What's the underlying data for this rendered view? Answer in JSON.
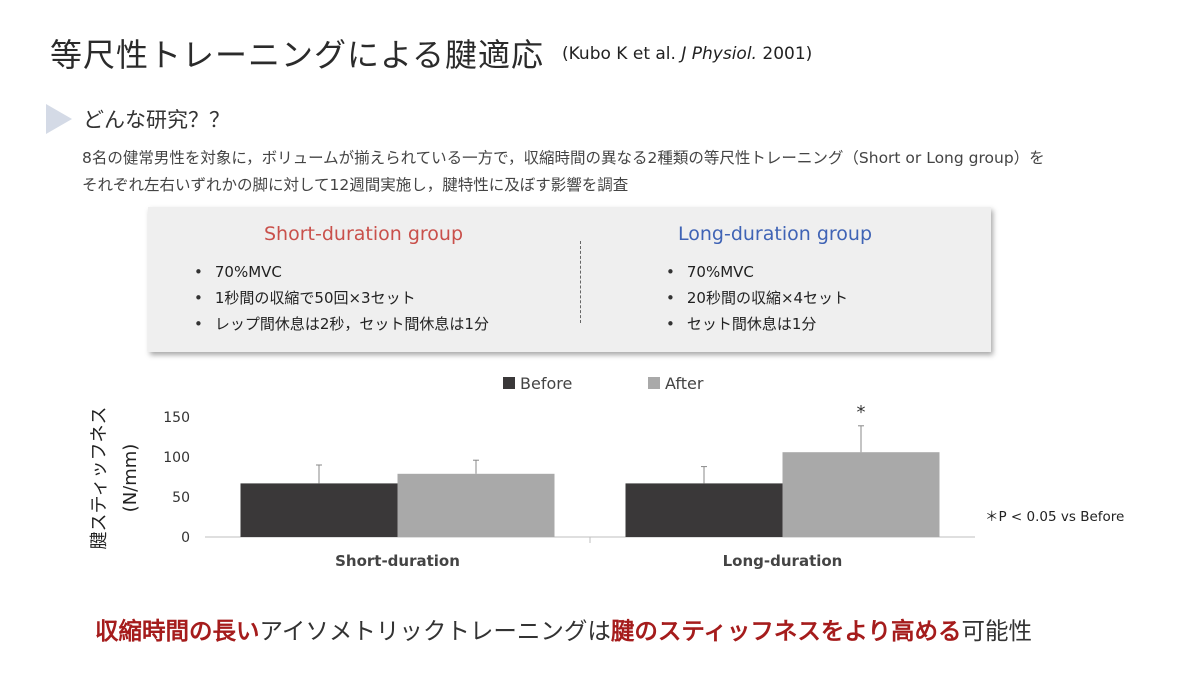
{
  "header": {
    "title": "等尺性トレーニングによる腱適応",
    "citation_prefix": "(Kubo K et al. ",
    "citation_journal": "J Physiol.",
    "citation_suffix": " 2001)"
  },
  "section": {
    "heading": "どんな研究？？",
    "desc_line1": "8名の健常男性を対象に，ボリュームが揃えられている一方で，収縮時間の異なる2種類の等尺性トレーニング（Short or Long group）を",
    "desc_line2": "それぞれ左右いずれかの脚に対して12週間実施し，腱特性に及ぼす影響を調査"
  },
  "protocol": {
    "short": {
      "title": "Short-duration group",
      "items": [
        "70%MVC",
        "1秒間の収縮で50回×3セット",
        "レップ間休息は2秒，セット間休息は1分"
      ]
    },
    "long": {
      "title": "Long-duration group",
      "items": [
        "70%MVC",
        "20秒間の収縮×4セット",
        "セット間休息は1分"
      ]
    }
  },
  "colors": {
    "before": "#3a3839",
    "after": "#a9a9a9",
    "short_title": "#c9504b",
    "long_title": "#3f63b5",
    "highlight": "#a51c1c"
  },
  "chart_data": {
    "type": "bar",
    "categories": [
      "Short-duration",
      "Long-duration"
    ],
    "series": [
      {
        "name": "Before",
        "values": [
          67,
          67
        ],
        "errors": [
          23,
          21
        ]
      },
      {
        "name": "After",
        "values": [
          79,
          106
        ],
        "errors": [
          17,
          33
        ]
      }
    ],
    "ylabel_line1": "腱スティッフネス",
    "ylabel_line2": "(N/mm)",
    "ylim": [
      0,
      150
    ],
    "yticks": [
      "0",
      "50",
      "100",
      "150"
    ],
    "legend_position": "top",
    "significance_marker": "*",
    "significance_note": "＊P < 0.05 vs Before"
  },
  "conclusion": {
    "part1": "収縮時間の長い",
    "part2": "アイソメトリックトレーニングは",
    "part3": "腱のスティッフネスをより高める",
    "part4": "可能性"
  }
}
